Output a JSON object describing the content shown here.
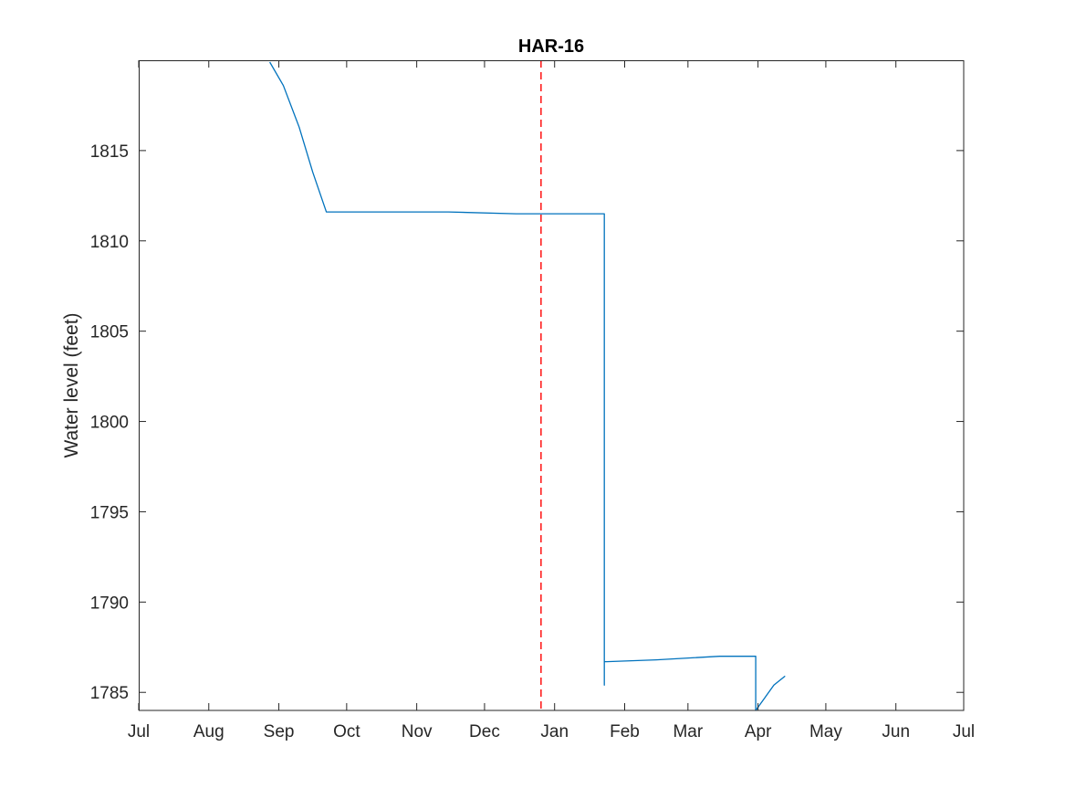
{
  "chart_data": {
    "type": "line",
    "title": "HAR-16",
    "xlabel": "",
    "ylabel": "Water level (feet)",
    "x_ticks": [
      "Jul",
      "Aug",
      "Sep",
      "Oct",
      "Nov",
      "Dec",
      "Jan",
      "Feb",
      "Mar",
      "Apr",
      "May",
      "Jun",
      "Jul"
    ],
    "y_ticks": [
      1785,
      1790,
      1795,
      1800,
      1805,
      1810,
      1815
    ],
    "xlim": [
      "Jul 1",
      "Jul 1 (following year)"
    ],
    "ylim": [
      1784,
      1820
    ],
    "grid": false,
    "legend": "none",
    "series": [
      {
        "color": "#0072BD",
        "x": [
          "Aug 28",
          "Sep 3",
          "Sep 10",
          "Sep 16",
          "Sep 22",
          "Sep 27",
          "Oct 15",
          "Nov 15",
          "Dec 15",
          "Jan 1",
          "Jan 23",
          "Jan 23",
          "Jan 23",
          "Jan 24",
          "Feb 15",
          "Mar 15",
          "Mar 31",
          "Mar 31",
          "Apr 4",
          "Apr 8",
          "Apr 13"
        ],
        "y": [
          1819.9,
          1818.6,
          1816.3,
          1813.8,
          1811.6,
          1811.6,
          1811.6,
          1811.6,
          1811.5,
          1811.5,
          1811.5,
          1785.4,
          1786.7,
          1786.7,
          1786.8,
          1787.0,
          1787.0,
          1784.0,
          1784.7,
          1785.4,
          1785.9
        ]
      }
    ],
    "reference_line": {
      "x": "Dec 26",
      "color": "#FF0000",
      "style": "dashed"
    }
  }
}
